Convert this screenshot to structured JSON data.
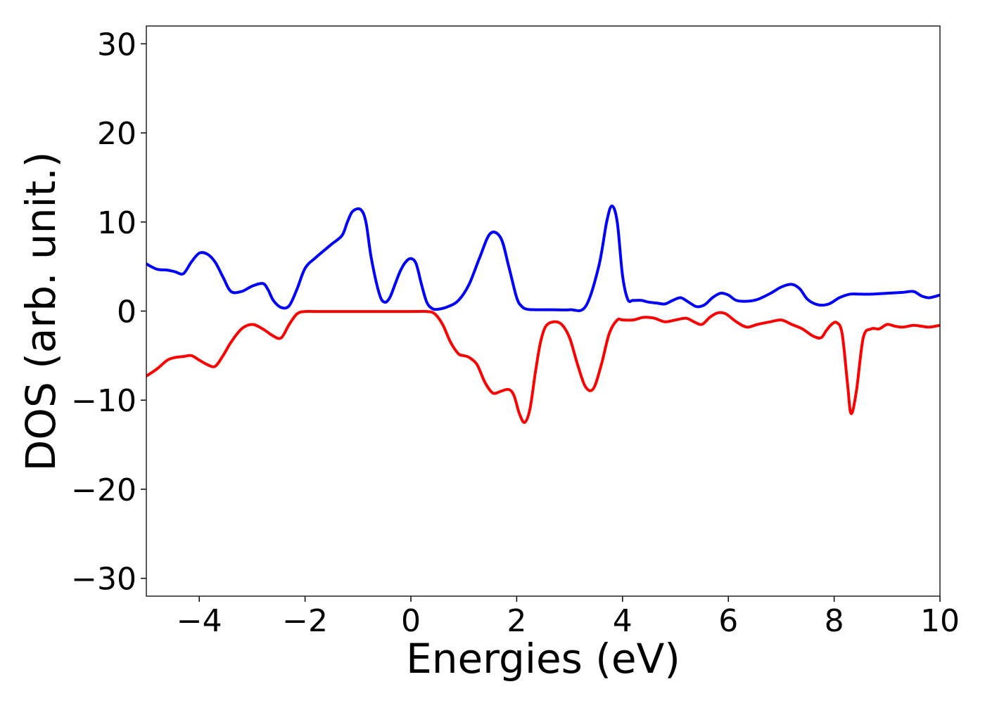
{
  "chart_data": {
    "type": "line",
    "title": "",
    "xlabel": "Energies (eV)",
    "ylabel": "DOS (arb. unit.)",
    "xlim": [
      -5,
      10
    ],
    "ylim": [
      -32,
      32
    ],
    "xticks": [
      -4,
      -2,
      0,
      2,
      4,
      6,
      8,
      10
    ],
    "yticks": [
      -30,
      -20,
      -10,
      0,
      10,
      20,
      30
    ],
    "xtick_labels": [
      "−4",
      "−2",
      "0",
      "2",
      "4",
      "6",
      "8",
      "10"
    ],
    "ytick_labels": [
      "−30",
      "−20",
      "−10",
      "0",
      "10",
      "20",
      "30"
    ],
    "grid": false,
    "legend": "none",
    "series": [
      {
        "color": "#0000ff",
        "x": [
          -5,
          -4.8,
          -4.6,
          -4.45,
          -4.3,
          -4.15,
          -4.0,
          -3.85,
          -3.7,
          -3.55,
          -3.4,
          -3.2,
          -3.0,
          -2.8,
          -2.7,
          -2.6,
          -2.45,
          -2.3,
          -2.15,
          -2.0,
          -1.8,
          -1.5,
          -1.3,
          -1.2,
          -1.1,
          -0.95,
          -0.85,
          -0.75,
          -0.6,
          -0.5,
          -0.4,
          -0.3,
          -0.2,
          -0.1,
          0.0,
          0.1,
          0.2,
          0.3,
          0.4,
          0.5,
          0.7,
          0.9,
          1.1,
          1.3,
          1.5,
          1.7,
          1.85,
          2.0,
          2.1,
          2.2,
          2.35,
          2.5,
          2.7,
          3.0,
          3.3,
          3.55,
          3.7,
          3.8,
          3.9,
          4.0,
          4.1,
          4.2,
          4.35,
          4.5,
          4.65,
          4.8,
          4.95,
          5.1,
          5.25,
          5.4,
          5.55,
          5.7,
          5.85,
          6.0,
          6.15,
          6.35,
          6.55,
          6.8,
          7.0,
          7.2,
          7.35,
          7.5,
          7.7,
          7.9,
          8.1,
          8.3,
          8.5,
          8.7,
          9.0,
          9.3,
          9.5,
          9.65,
          9.8,
          10.0
        ],
        "y": [
          5.3,
          4.7,
          4.6,
          4.4,
          4.2,
          5.5,
          6.5,
          6.4,
          5.5,
          3.8,
          2.2,
          2.2,
          2.8,
          3.1,
          2.4,
          1.2,
          0.4,
          0.6,
          2.5,
          4.8,
          6.0,
          7.5,
          8.5,
          10.0,
          11.2,
          11.4,
          10.0,
          6.0,
          2.0,
          1.0,
          1.5,
          3.0,
          4.5,
          5.5,
          5.9,
          5.3,
          3.0,
          1.0,
          0.3,
          0.2,
          0.5,
          1.2,
          3.0,
          6.0,
          8.7,
          8.2,
          5.0,
          1.5,
          0.5,
          0.2,
          0.15,
          0.15,
          0.15,
          0.15,
          0.5,
          5.0,
          10.0,
          11.8,
          10.0,
          4.0,
          1.3,
          1.2,
          1.2,
          1.0,
          0.9,
          0.8,
          1.2,
          1.5,
          1.0,
          0.5,
          0.7,
          1.5,
          2.0,
          1.8,
          1.2,
          1.1,
          1.3,
          2.0,
          2.7,
          3.0,
          2.5,
          1.3,
          0.7,
          0.8,
          1.5,
          1.9,
          1.9,
          1.9,
          2.0,
          2.1,
          2.2,
          1.7,
          1.5,
          1.8
        ]
      },
      {
        "color": "#ff0000",
        "x": [
          -5,
          -4.8,
          -4.6,
          -4.45,
          -4.3,
          -4.15,
          -4.0,
          -3.85,
          -3.7,
          -3.55,
          -3.4,
          -3.2,
          -3.0,
          -2.8,
          -2.6,
          -2.45,
          -2.3,
          -2.15,
          -2.0,
          -1.8,
          -1.5,
          0.0,
          0.3,
          0.45,
          0.6,
          0.75,
          0.9,
          1.0,
          1.1,
          1.25,
          1.4,
          1.55,
          1.7,
          1.85,
          1.95,
          2.05,
          2.15,
          2.25,
          2.35,
          2.45,
          2.55,
          2.7,
          2.85,
          3.0,
          3.15,
          3.3,
          3.45,
          3.6,
          3.75,
          3.9,
          4.0,
          4.2,
          4.4,
          4.6,
          4.8,
          5.0,
          5.2,
          5.35,
          5.5,
          5.65,
          5.8,
          5.95,
          6.15,
          6.35,
          6.55,
          6.8,
          7.0,
          7.2,
          7.4,
          7.6,
          7.75,
          7.85,
          7.95,
          8.05,
          8.15,
          8.25,
          8.32,
          8.42,
          8.55,
          8.7,
          8.85,
          9.0,
          9.15,
          9.3,
          9.5,
          9.65,
          9.8,
          10.0
        ],
        "y": [
          -7.3,
          -6.5,
          -5.5,
          -5.2,
          -5.1,
          -5.0,
          -5.5,
          -6.0,
          -6.2,
          -5.0,
          -3.5,
          -2.0,
          -1.5,
          -2.0,
          -2.8,
          -3.0,
          -1.5,
          -0.3,
          -0.05,
          -0.05,
          -0.05,
          -0.05,
          -0.05,
          -0.3,
          -1.5,
          -3.5,
          -4.8,
          -5.0,
          -5.2,
          -6.0,
          -8.0,
          -9.2,
          -9.0,
          -8.8,
          -9.5,
          -11.5,
          -12.5,
          -11.0,
          -7.0,
          -3.5,
          -1.7,
          -1.2,
          -1.5,
          -3.0,
          -6.0,
          -8.5,
          -8.7,
          -6.0,
          -2.5,
          -1.0,
          -1.0,
          -1.0,
          -0.7,
          -0.8,
          -1.2,
          -1.0,
          -0.8,
          -1.2,
          -1.5,
          -0.7,
          -0.2,
          -0.3,
          -1.2,
          -1.8,
          -1.5,
          -1.2,
          -1.0,
          -1.5,
          -2.0,
          -2.8,
          -3.0,
          -2.2,
          -1.5,
          -1.3,
          -2.5,
          -8.0,
          -11.5,
          -9.0,
          -3.0,
          -2.0,
          -2.0,
          -1.5,
          -1.7,
          -1.8,
          -1.6,
          -1.7,
          -1.8,
          -1.6
        ]
      }
    ]
  }
}
